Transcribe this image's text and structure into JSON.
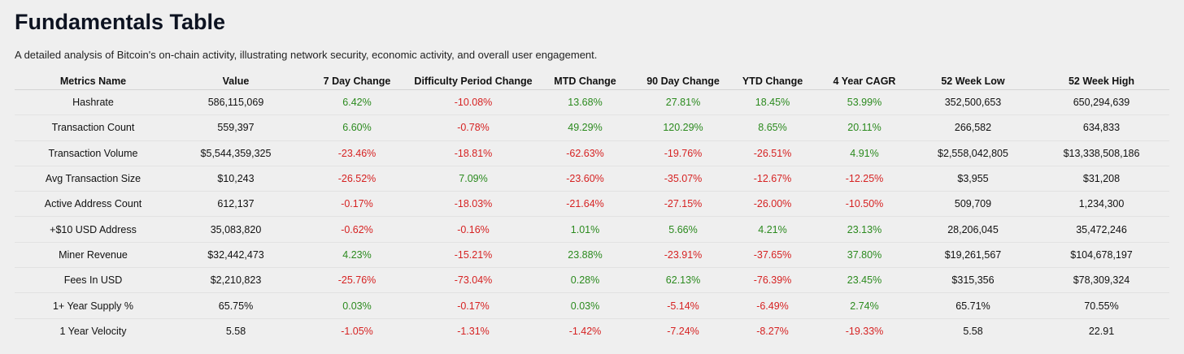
{
  "header": {
    "title": "Fundamentals Table",
    "subtitle": "A detailed analysis of Bitcoin's on-chain activity, illustrating network security, economic activity, and overall user engagement."
  },
  "table": {
    "columns": [
      "Metrics Name",
      "Value",
      "7 Day Change",
      "Difficulty Period Change",
      "MTD Change",
      "90 Day Change",
      "YTD Change",
      "4 Year CAGR",
      "52 Week Low",
      "52 Week High"
    ],
    "signed_columns": [
      2,
      3,
      4,
      5,
      6,
      7
    ],
    "colors": {
      "up": "#2b8a1e",
      "down": "#d62222",
      "plain": "#111111"
    },
    "rows": [
      [
        "Hashrate",
        "586,115,069",
        "6.42%",
        "-10.08%",
        "13.68%",
        "27.81%",
        "18.45%",
        "53.99%",
        "352,500,653",
        "650,294,639"
      ],
      [
        "Transaction Count",
        "559,397",
        "6.60%",
        "-0.78%",
        "49.29%",
        "120.29%",
        "8.65%",
        "20.11%",
        "266,582",
        "634,833"
      ],
      [
        "Transaction Volume",
        "$5,544,359,325",
        "-23.46%",
        "-18.81%",
        "-62.63%",
        "-19.76%",
        "-26.51%",
        "4.91%",
        "$2,558,042,805",
        "$13,338,508,186"
      ],
      [
        "Avg Transaction Size",
        "$10,243",
        "-26.52%",
        "7.09%",
        "-23.60%",
        "-35.07%",
        "-12.67%",
        "-12.25%",
        "$3,955",
        "$31,208"
      ],
      [
        "Active Address Count",
        "612,137",
        "-0.17%",
        "-18.03%",
        "-21.64%",
        "-27.15%",
        "-26.00%",
        "-10.50%",
        "509,709",
        "1,234,300"
      ],
      [
        "+$10 USD Address",
        "35,083,820",
        "-0.62%",
        "-0.16%",
        "1.01%",
        "5.66%",
        "4.21%",
        "23.13%",
        "28,206,045",
        "35,472,246"
      ],
      [
        "Miner Revenue",
        "$32,442,473",
        "4.23%",
        "-15.21%",
        "23.88%",
        "-23.91%",
        "-37.65%",
        "37.80%",
        "$19,261,567",
        "$104,678,197"
      ],
      [
        "Fees In USD",
        "$2,210,823",
        "-25.76%",
        "-73.04%",
        "0.28%",
        "62.13%",
        "-76.39%",
        "23.45%",
        "$315,356",
        "$78,309,324"
      ],
      [
        "1+ Year Supply %",
        "65.75%",
        "0.03%",
        "-0.17%",
        "0.03%",
        "-5.14%",
        "-6.49%",
        "2.74%",
        "65.71%",
        "70.55%"
      ],
      [
        "1 Year Velocity",
        "5.58",
        "-1.05%",
        "-1.31%",
        "-1.42%",
        "-7.24%",
        "-8.27%",
        "-19.33%",
        "5.58",
        "22.91"
      ]
    ]
  }
}
